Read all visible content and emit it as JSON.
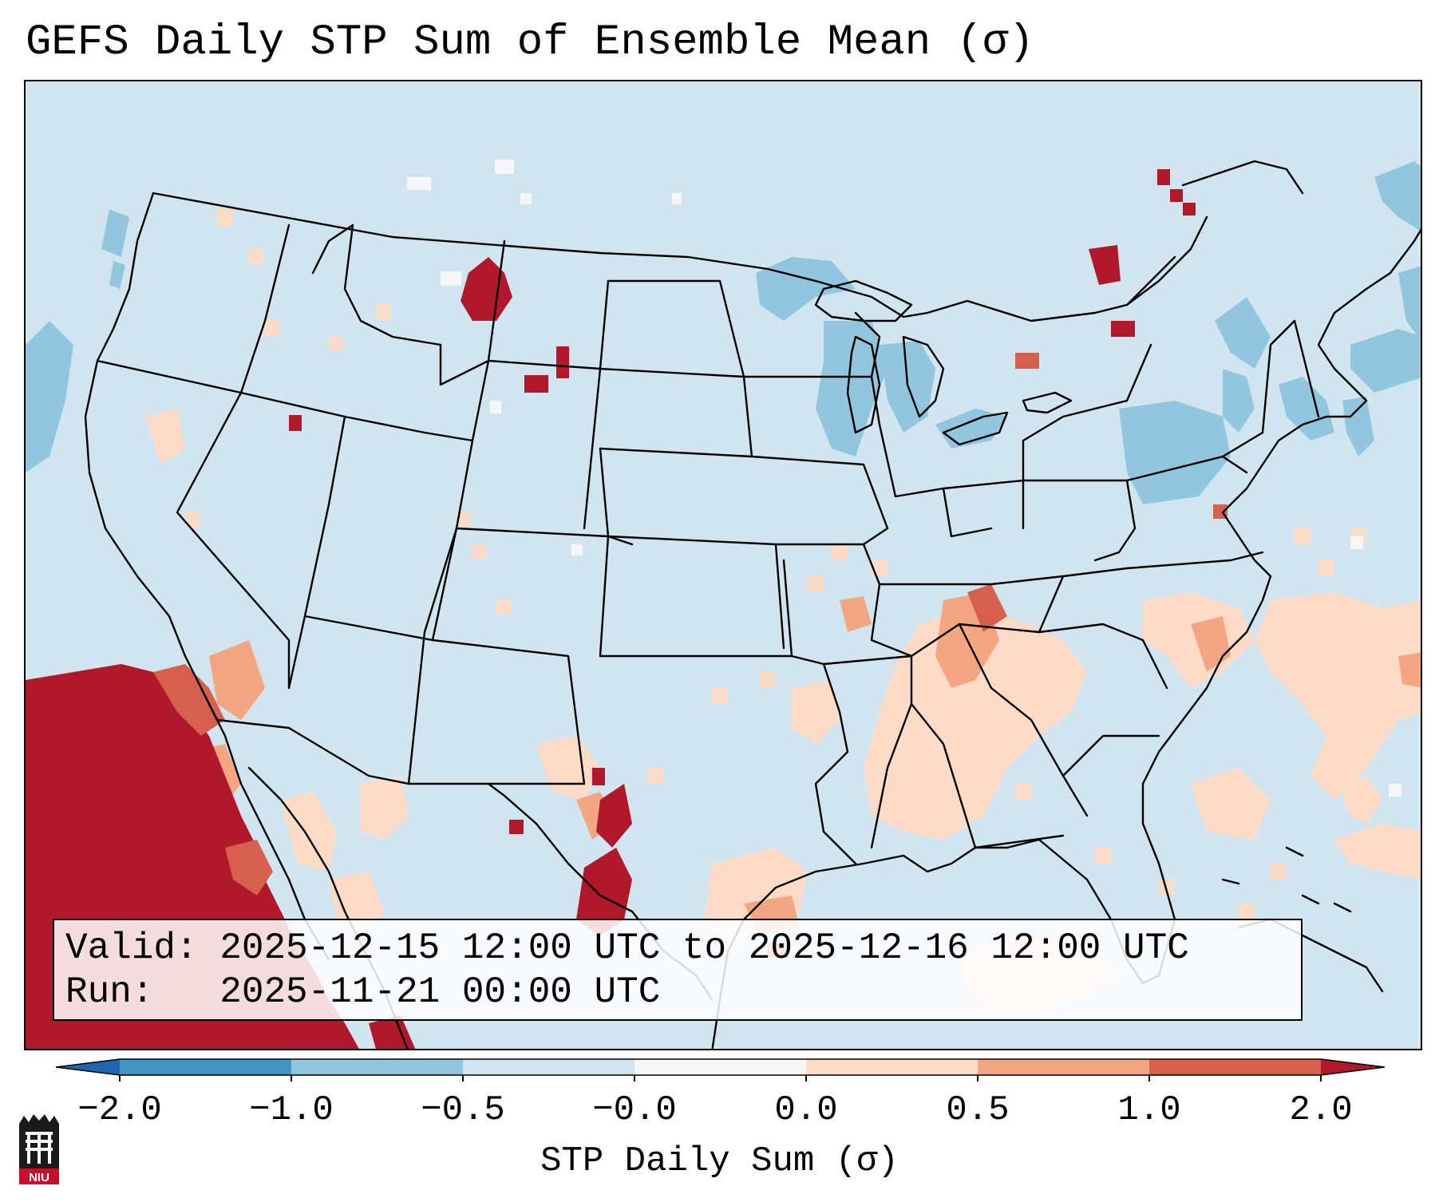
{
  "title": "GEFS Daily STP Sum of Ensemble Mean (σ)",
  "info": {
    "valid": "Valid: 2025-12-15 12:00 UTC to 2025-12-16 12:00 UTC",
    "run": "Run:   2025-11-21 00:00 UTC"
  },
  "colorbar": {
    "label": "STP Daily Sum (σ)",
    "tick_labels": [
      "−2.0",
      "−1.0",
      "−0.5",
      "−0.0",
      "0.0",
      "0.5",
      "1.0",
      "2.0"
    ],
    "bins": [
      {
        "range": "< -2.0",
        "color": "#2166ac"
      },
      {
        "range": "-2.0 to -1.0",
        "color": "#4393c3"
      },
      {
        "range": "-1.0 to -0.5",
        "color": "#92c5de"
      },
      {
        "range": "-0.5 to 0.0",
        "color": "#d1e5f0"
      },
      {
        "range": "0.0",
        "color": "#f7f7f7"
      },
      {
        "range": "0.0 to 0.5",
        "color": "#fddbc7"
      },
      {
        "range": "0.5 to 1.0",
        "color": "#f4a582"
      },
      {
        "range": "1.0 to 2.0",
        "color": "#d6604d"
      },
      {
        "range": "> 2.0",
        "color": "#b2182b"
      }
    ]
  },
  "logo": {
    "text": "NIU",
    "name": "niu-logo"
  },
  "colors": {
    "background": "#d1e5f0",
    "strong_negative": "#92c5de",
    "weak_positive": "#fddbc7",
    "moderate_positive": "#f4a582",
    "high_positive": "#d6604d",
    "extreme_positive": "#b2182b",
    "borders": "#000000"
  }
}
